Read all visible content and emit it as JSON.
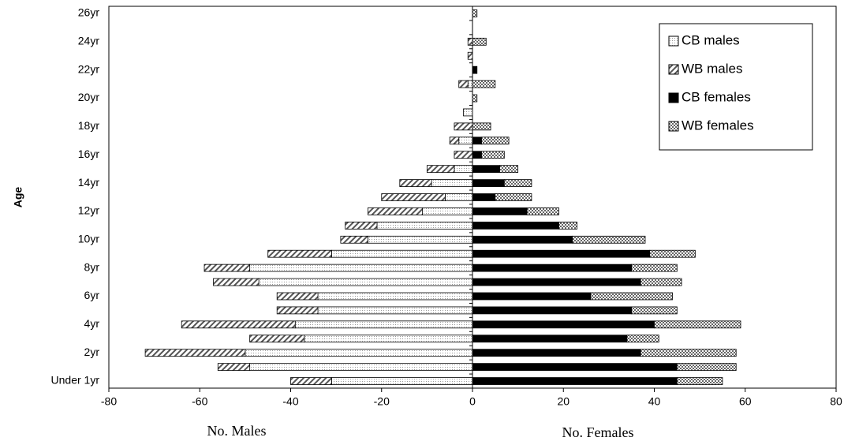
{
  "chart_data": {
    "type": "bar",
    "orientation": "horizontal",
    "stacked": true,
    "y_label": "Age",
    "x_labels": [
      "No. Males",
      "No. Females"
    ],
    "categories": [
      "Under 1yr",
      null,
      "2yr",
      null,
      "4yr",
      null,
      "6yr",
      null,
      "8yr",
      null,
      "10yr",
      null,
      "12yr",
      null,
      "14yr",
      null,
      "16yr",
      null,
      "18yr",
      null,
      "20yr",
      null,
      "22yr",
      null,
      "24yr",
      null,
      "26yr"
    ],
    "series": [
      {
        "name": "CB males",
        "color": "#e8e8e8",
        "pattern": "dots",
        "values": [
          -31,
          -49,
          -50,
          -37,
          -39,
          -34,
          -34,
          -47,
          -49,
          -31,
          -23,
          -21,
          -11,
          -6,
          -9,
          -4,
          0,
          -3,
          0,
          -2,
          0,
          -1,
          0,
          0,
          0,
          0,
          0
        ]
      },
      {
        "name": "WB males",
        "color": "#555555",
        "pattern": "diagonal",
        "values": [
          -9,
          -7,
          -22,
          -12,
          -25,
          -9,
          -9,
          -10,
          -10,
          -14,
          -6,
          -7,
          -12,
          -14,
          -7,
          -6,
          -4,
          -2,
          -4,
          0,
          0,
          -2,
          0,
          -1,
          -1,
          0,
          0
        ]
      },
      {
        "name": "CB females",
        "color": "#000000",
        "pattern": "solid",
        "values": [
          45,
          45,
          37,
          34,
          40,
          35,
          26,
          37,
          35,
          39,
          22,
          19,
          12,
          5,
          7,
          6,
          2,
          2,
          0,
          0,
          0,
          0,
          1,
          0,
          0,
          0,
          0
        ]
      },
      {
        "name": "WB females",
        "color": "#777777",
        "pattern": "cross",
        "values": [
          10,
          13,
          21,
          7,
          19,
          10,
          18,
          9,
          10,
          10,
          16,
          4,
          7,
          8,
          6,
          4,
          5,
          6,
          4,
          0,
          1,
          5,
          0,
          0,
          3,
          0,
          1
        ]
      }
    ],
    "xlim": [
      -80,
      80
    ],
    "xticks": [
      -80,
      -60,
      -40,
      -20,
      0,
      20,
      40,
      60,
      80
    ],
    "legend": "top-right",
    "grid": false
  }
}
